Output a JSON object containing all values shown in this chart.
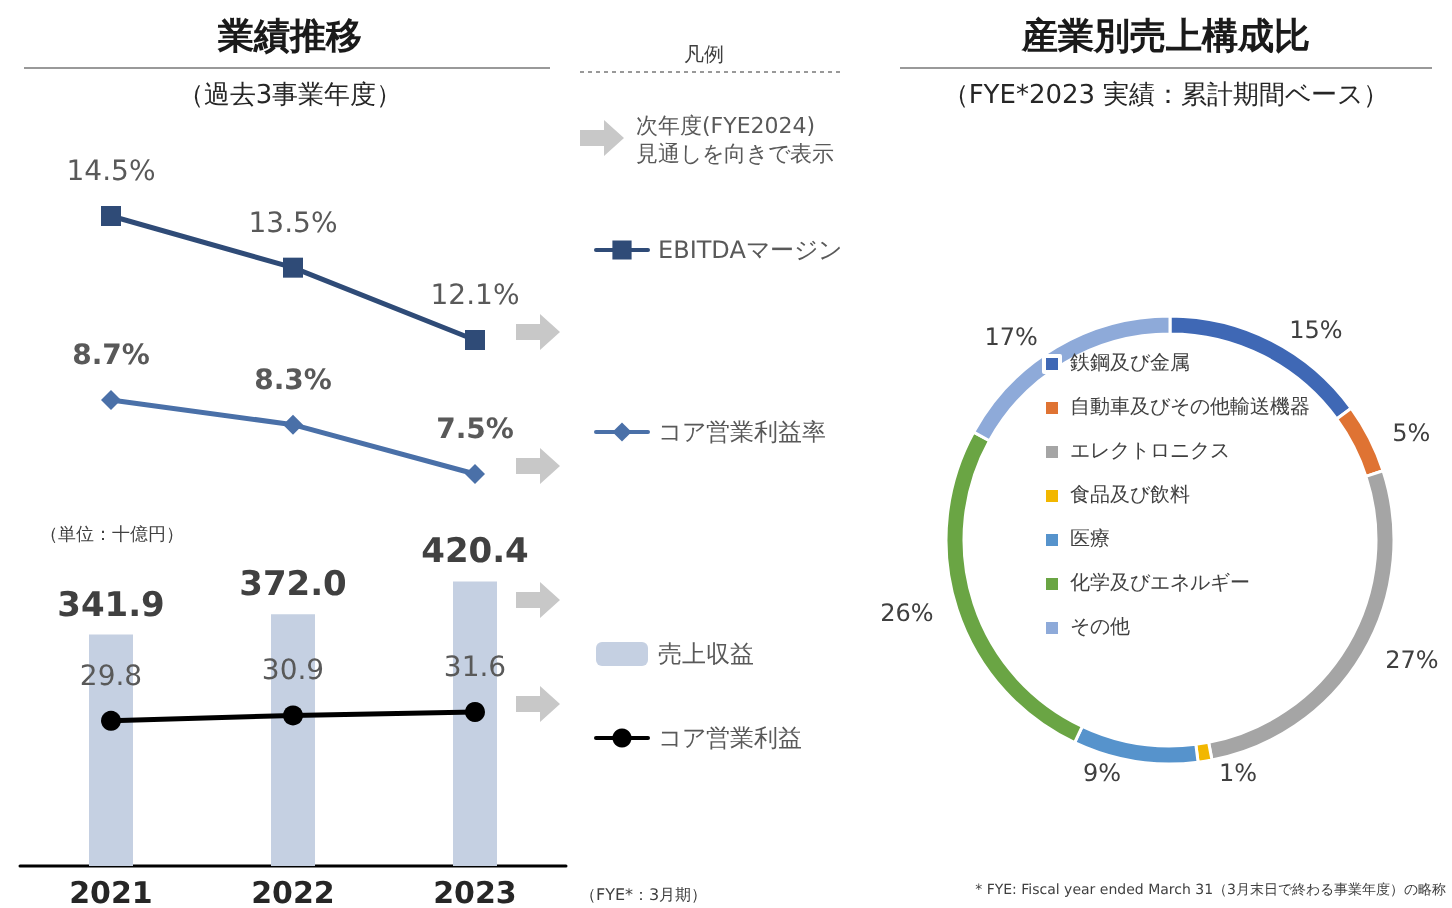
{
  "chart_data": [
    {
      "type": "line",
      "title": "業績推移",
      "subtitle": "（過去3事業年度）",
      "legend_title": "凡例",
      "annotations": [
        "次年度(FYE2024)\n見通しを向きで表示"
      ],
      "categories": [
        "2021",
        "2022",
        "2023"
      ],
      "tick_labels": false,
      "legend": "right",
      "series": [
        {
          "name": "EBITDAマージン",
          "color": "#2f4b77",
          "marker": "square",
          "values": [
            14.5,
            13.5,
            12.1
          ],
          "value_labels": [
            "14.5%",
            "13.5%",
            "12.1%"
          ]
        }
      ]
    },
    {
      "type": "line",
      "categories": [
        "2021",
        "2022",
        "2023"
      ],
      "tick_labels": false,
      "legend": "right",
      "series": [
        {
          "name": "コア営業利益率",
          "color": "#4a70a8",
          "marker": "diamond",
          "values": [
            8.7,
            8.3,
            7.5
          ],
          "value_labels": [
            "8.7%",
            "8.3%",
            "7.5%"
          ]
        }
      ]
    },
    {
      "type": "bar",
      "annotations": [
        "（単位：十億円）",
        "（FYE*：3月期）"
      ],
      "categories": [
        "2021",
        "2022",
        "2023"
      ],
      "legend": "right",
      "series": [
        {
          "name": "売上収益",
          "color": "#c5d0e2",
          "values": [
            341.9,
            372.0,
            420.4
          ],
          "value_labels": [
            "341.9",
            "372.0",
            "420.4"
          ]
        },
        {
          "name": "コア営業利益",
          "type": "line",
          "color": "#000000",
          "marker": "circle",
          "axis": "y2",
          "values": [
            29.8,
            30.9,
            31.6
          ],
          "value_labels": [
            "29.8",
            "30.9",
            "31.6"
          ]
        }
      ]
    },
    {
      "type": "donut",
      "title": "産業別売上構成比",
      "subtitle": "（FYE*2023 実績：累計期間ベース）",
      "annotations": [
        "* FYE: Fiscal year ended March 31（3月末日で終わる事業年度）の略称"
      ],
      "legend": "top right",
      "categories": [
        "鉄鋼及び金属",
        "自動車及びその他輸送機器",
        "エレクトロニクス",
        "食品及び飲料",
        "医療",
        "化学及びエネルギー",
        "その他"
      ],
      "values": [
        15,
        5,
        27,
        1,
        9,
        26,
        17
      ],
      "value_labels": [
        "15%",
        "5%",
        "27%",
        "1%",
        "9%",
        "26%",
        "17%"
      ],
      "colors": [
        "#3f68b5",
        "#df7333",
        "#a5a5a5",
        "#f2b700",
        "#5693cc",
        "#6aa544",
        "#8eaad9"
      ]
    }
  ]
}
